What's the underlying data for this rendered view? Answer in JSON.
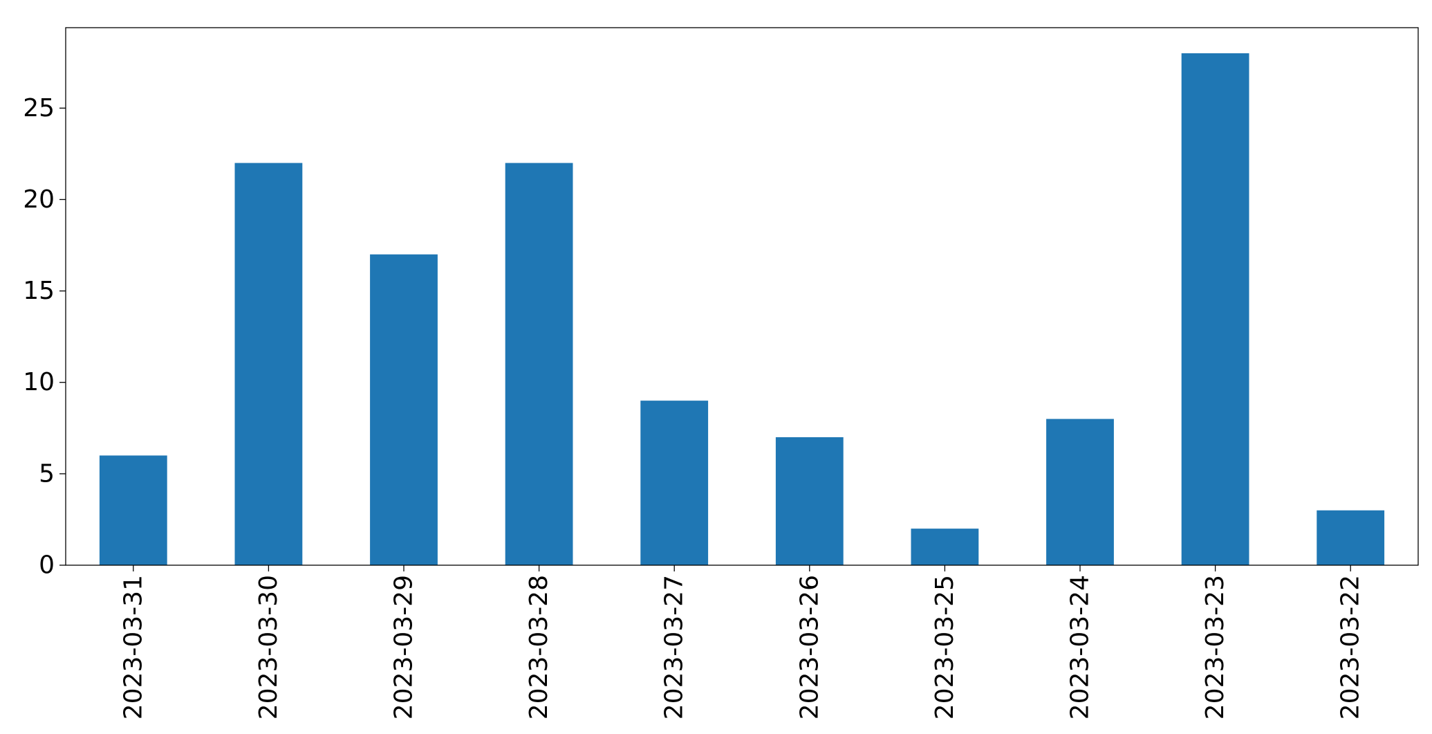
{
  "chart_data": {
    "type": "bar",
    "categories": [
      "2023-03-31",
      "2023-03-30",
      "2023-03-29",
      "2023-03-28",
      "2023-03-27",
      "2023-03-26",
      "2023-03-25",
      "2023-03-24",
      "2023-03-23",
      "2023-03-22"
    ],
    "values": [
      6,
      22,
      17,
      22,
      9,
      7,
      2,
      8,
      28,
      3
    ],
    "color": "#1f77b4",
    "ylim": [
      0,
      29.4
    ],
    "yticks": [
      0,
      5,
      10,
      15,
      20,
      25
    ],
    "grid": false
  }
}
